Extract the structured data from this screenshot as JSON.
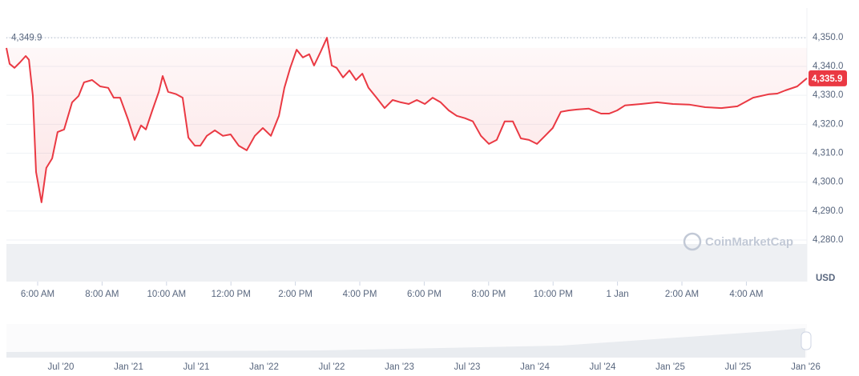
{
  "chart_data": {
    "type": "line",
    "color": "#ea3943",
    "x": [
      5.03,
      5.13,
      5.28,
      5.45,
      5.63,
      5.73,
      5.85,
      5.95,
      6.12,
      6.27,
      6.45,
      6.62,
      6.82,
      7.07,
      7.27,
      7.44,
      7.69,
      7.94,
      8.19,
      8.36,
      8.56,
      8.81,
      9.01,
      9.21,
      9.36,
      9.56,
      9.76,
      9.88,
      10.05,
      10.3,
      10.5,
      10.68,
      10.88,
      11.05,
      11.25,
      11.5,
      11.75,
      11.99,
      12.24,
      12.49,
      12.74,
      12.99,
      13.24,
      13.49,
      13.66,
      13.84,
      14.04,
      14.23,
      14.43,
      14.58,
      14.78,
      14.98,
      15.13,
      15.28,
      15.48,
      15.68,
      15.88,
      16.08,
      16.27,
      16.52,
      16.77,
      17.02,
      17.27,
      17.52,
      17.77,
      18.02,
      18.26,
      18.51,
      18.76,
      19.01,
      19.26,
      19.51,
      19.76,
      20.01,
      20.25,
      20.5,
      20.75,
      21.0,
      21.25,
      21.5,
      21.75,
      21.99,
      22.24,
      22.49,
      22.74,
      23.11,
      23.49,
      23.74,
      23.99,
      24.23,
      24.73,
      25.23,
      25.72,
      26.22,
      26.72,
      27.22,
      27.72,
      28.21,
      28.71,
      28.96,
      29.21,
      29.58,
      29.88
    ],
    "values": [
      4346.4,
      4340.9,
      4339.5,
      4341.4,
      4343.6,
      4342.3,
      4329.8,
      4303.5,
      4293.0,
      4304.9,
      4308.2,
      4317.3,
      4318.2,
      4327.6,
      4329.8,
      4334.5,
      4335.3,
      4333.1,
      4332.6,
      4329.2,
      4329.2,
      4321.5,
      4314.6,
      4319.6,
      4318.2,
      4324.8,
      4331.2,
      4336.7,
      4331.2,
      4330.4,
      4329.2,
      4315.4,
      4312.6,
      4312.6,
      4316.0,
      4317.9,
      4316.0,
      4316.5,
      4312.6,
      4311.0,
      4316.0,
      4318.7,
      4316.0,
      4322.9,
      4332.6,
      4339.5,
      4345.8,
      4343.1,
      4344.2,
      4340.3,
      4345.0,
      4349.9,
      4340.3,
      4339.5,
      4336.2,
      4338.6,
      4335.3,
      4337.5,
      4332.6,
      4329.2,
      4325.6,
      4328.4,
      4327.6,
      4327.0,
      4328.4,
      4327.0,
      4329.2,
      4327.6,
      4324.8,
      4322.9,
      4322.1,
      4321.0,
      4316.0,
      4313.2,
      4314.6,
      4321.0,
      4321.0,
      4315.1,
      4314.6,
      4313.2,
      4316.0,
      4318.7,
      4324.3,
      4324.8,
      4325.1,
      4325.4,
      4323.7,
      4323.7,
      4324.8,
      4326.5,
      4327.0,
      4327.6,
      4327.0,
      4326.8,
      4325.9,
      4325.6,
      4326.2,
      4329.2,
      4330.4,
      4330.6,
      4331.7,
      4333.1,
      4335.9
    ],
    "xlim": [
      5.03,
      29.88
    ],
    "ylim": [
      4265.6,
      4360.2
    ],
    "xticks": [
      {
        "value": 6,
        "label": "6:00 AM"
      },
      {
        "value": 8,
        "label": "8:00 AM"
      },
      {
        "value": 10,
        "label": "10:00 AM"
      },
      {
        "value": 12,
        "label": "12:00 PM"
      },
      {
        "value": 14,
        "label": "2:00 PM"
      },
      {
        "value": 16,
        "label": "4:00 PM"
      },
      {
        "value": 18,
        "label": "6:00 PM"
      },
      {
        "value": 20,
        "label": "8:00 PM"
      },
      {
        "value": 22,
        "label": "10:00 PM"
      },
      {
        "value": 24,
        "label": "1 Jan"
      },
      {
        "value": 26,
        "label": "2:00 AM"
      },
      {
        "value": 28,
        "label": "4:00 AM"
      }
    ],
    "yticks": [
      {
        "value": 4280,
        "label": "4,280.0"
      },
      {
        "value": 4290,
        "label": "4,290.0"
      },
      {
        "value": 4300,
        "label": "4,300.0"
      },
      {
        "value": 4310,
        "label": "4,310.0"
      },
      {
        "value": 4320,
        "label": "4,320.0"
      },
      {
        "value": 4330,
        "label": "4,330.0"
      },
      {
        "value": 4340,
        "label": "4,340.0"
      },
      {
        "value": 4350,
        "label": "4,350.0"
      }
    ],
    "max_label": {
      "value": 4349.9,
      "label": "4,349.9"
    },
    "last_label": {
      "value": 4335.9,
      "label": "4,335.9"
    },
    "y_unit": "USD",
    "watermark": "CoinMarketCap",
    "navigator_labels": [
      "Jul '20",
      "Jan '21",
      "Jul '21",
      "Jan '22",
      "Jul '22",
      "Jan '23",
      "Jul '23",
      "Jan '24",
      "Jul '24",
      "Jan '25",
      "Jul '25",
      "Jan '26"
    ]
  }
}
